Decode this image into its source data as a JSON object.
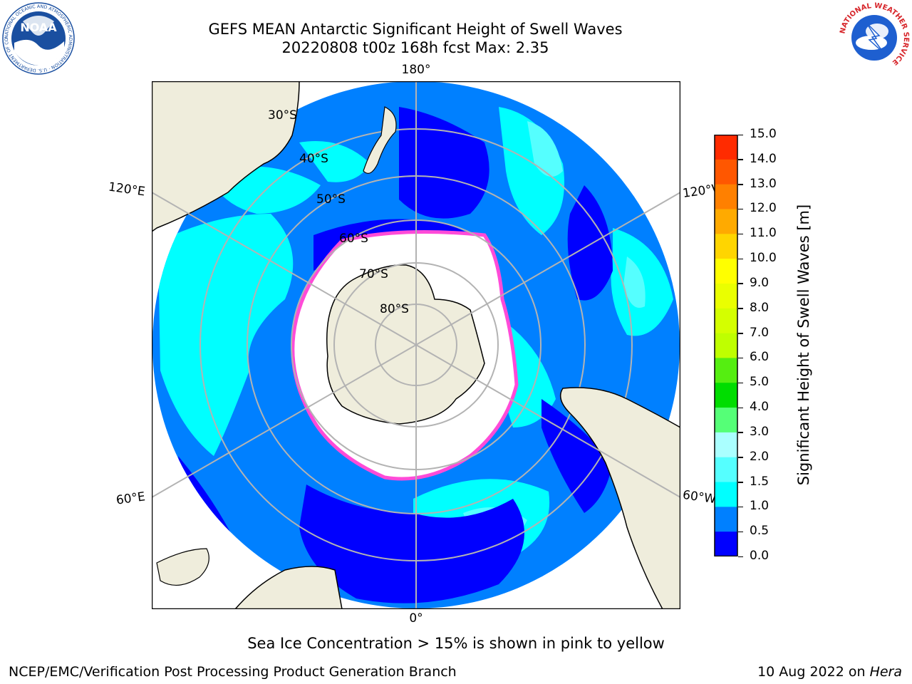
{
  "header": {
    "title_line1": "GEFS MEAN Antarctic Significant Height of Swell Waves",
    "title_line2": "20220808 t00z 168h fcst   Max: 2.35"
  },
  "logos": {
    "left": {
      "name": "NOAA",
      "ring_text": "NATIONAL OCEANIC AND ATMOSPHERIC ADMINISTRATION · U.S. DEPARTMENT OF COMMERCE",
      "color": "#1a4fa0"
    },
    "right": {
      "name": "NATIONAL WEATHER SERVICE",
      "color": "#d7262b"
    }
  },
  "map": {
    "longitude_labels": {
      "top": "180°",
      "bottom": "0°",
      "upper_left": "120°E",
      "upper_right": "120°W",
      "lower_left": "60°E",
      "lower_right": "60°W"
    },
    "latitude_labels": [
      "30°S",
      "40°S",
      "50°S",
      "60°S",
      "70°S",
      "80°S"
    ],
    "colors": {
      "land": "#efeddc",
      "ice": "#ffffff",
      "ice_edge": "#ff4bd8"
    }
  },
  "colorbar": {
    "title": "Significant Height of Swell Waves [m]",
    "ticks": [
      "15.0",
      "14.0",
      "13.0",
      "12.0",
      "11.0",
      "10.0",
      "9.0",
      "8.0",
      "7.0",
      "6.0",
      "5.0",
      "4.0",
      "3.0",
      "2.0",
      "1.5",
      "1.0",
      "0.5",
      "0.0"
    ],
    "colors": [
      "#ff0000",
      "#ff2b00",
      "#ff5700",
      "#ff8000",
      "#ffaa00",
      "#ffd500",
      "#ffff00",
      "#eaff00",
      "#d4ff00",
      "#bfff00",
      "#55ee11",
      "#00dd00",
      "#55ff77",
      "#aaffff",
      "#55ffff",
      "#00ffff",
      "#0080ff",
      "#0000ff"
    ]
  },
  "notes": {
    "sea_ice": "Sea Ice Concentration > 15% is shown in pink to yellow",
    "credit": "NCEP/EMC/Verification Post Processing Product Generation Branch",
    "date": "10 Aug 2022 on ",
    "host": "Hera"
  }
}
